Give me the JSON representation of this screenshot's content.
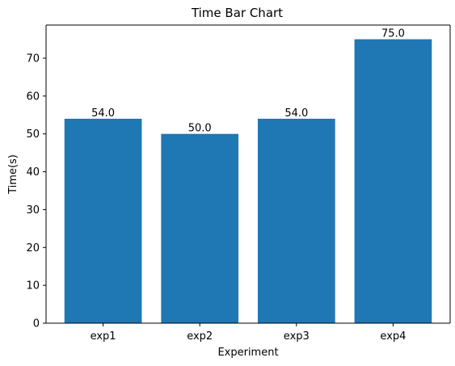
{
  "chart_data": {
    "type": "bar",
    "title": "Time Bar Chart",
    "xlabel": "Experiment",
    "ylabel": "Time(s)",
    "categories": [
      "exp1",
      "exp2",
      "exp3",
      "exp4"
    ],
    "values": [
      54.0,
      50.0,
      54.0,
      75.0
    ],
    "value_labels": [
      "54.0",
      "50.0",
      "54.0",
      "75.0"
    ],
    "ylim": [
      0,
      78.75
    ],
    "yticks": [
      0,
      10,
      20,
      30,
      40,
      50,
      60,
      70
    ],
    "grid": false,
    "bar_color": "#1f77b4"
  }
}
